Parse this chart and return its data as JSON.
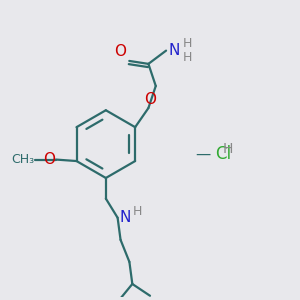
{
  "bg_color": "#e8e8ec",
  "bond_color": "#2d6b6b",
  "O_color": "#cc0000",
  "N_color": "#2222cc",
  "Cl_color": "#33aa33",
  "H_color": "#888888",
  "line_width": 1.6,
  "figsize": [
    3.0,
    3.0
  ],
  "dpi": 100,
  "xlim": [
    0.0,
    1.0
  ],
  "ylim": [
    0.0,
    1.0
  ]
}
